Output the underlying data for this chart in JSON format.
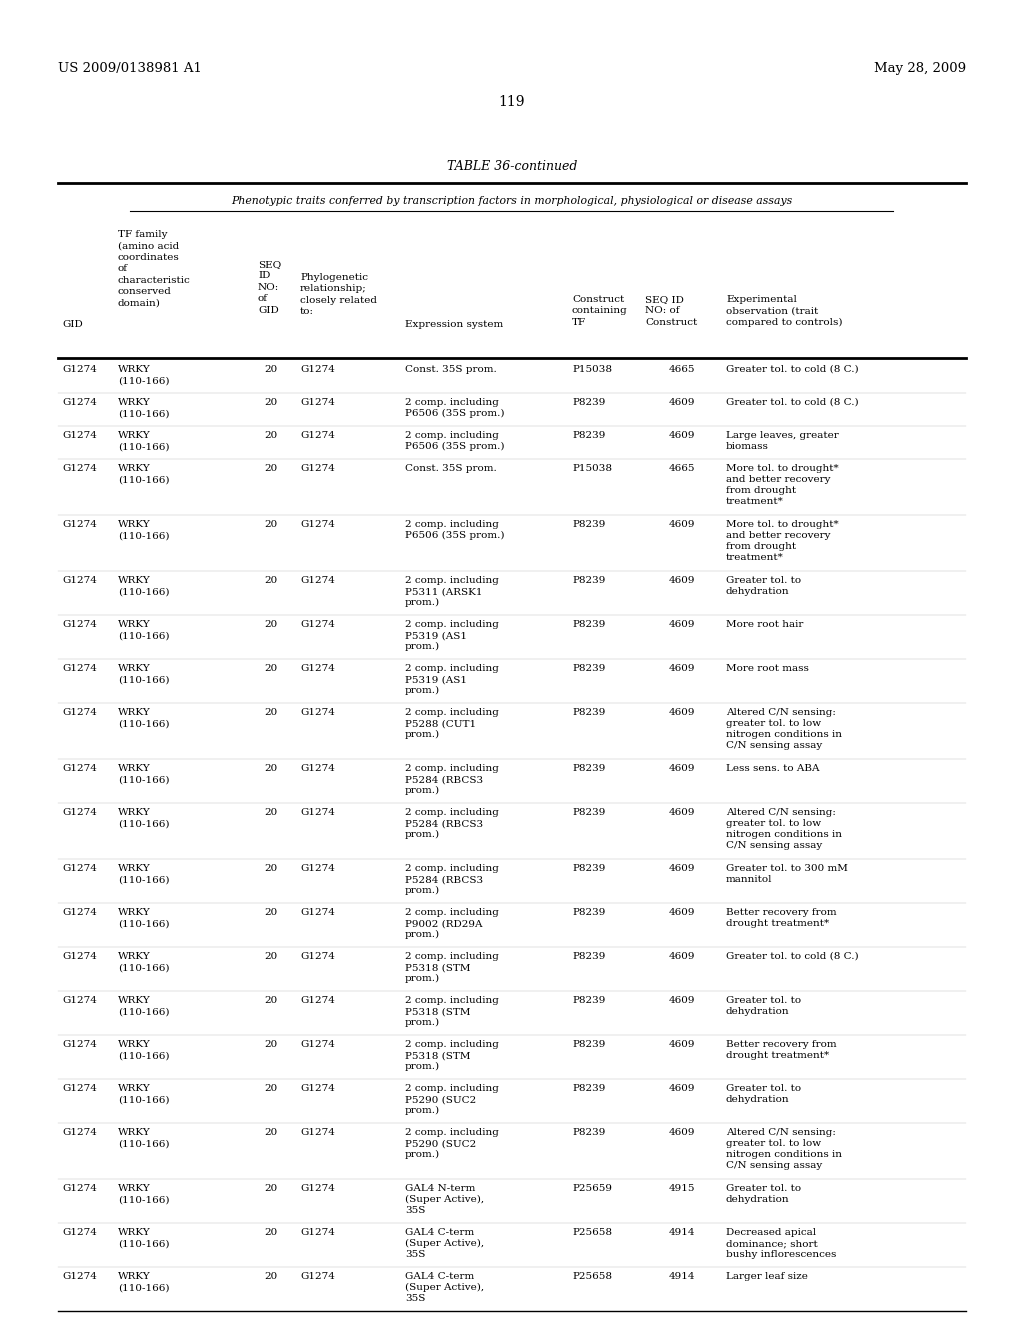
{
  "header_left": "US 2009/0138981 A1",
  "header_right": "May 28, 2009",
  "page_number": "119",
  "table_title": "TABLE 36-continued",
  "subtitle": "Phenotypic traits conferred by transcription factors in morphological, physiological or disease assays",
  "rows": [
    {
      "gid": "G1274",
      "tf": "WRKY\n(110-166)",
      "seq": "20",
      "phylo": "G1274",
      "expr": "Const. 35S prom.",
      "construct": "P15038",
      "seq_c": "4665",
      "obs": "Greater tol. to cold (8 C.)"
    },
    {
      "gid": "G1274",
      "tf": "WRKY\n(110-166)",
      "seq": "20",
      "phylo": "G1274",
      "expr": "2 comp. including\nP6506 (35S prom.)",
      "construct": "P8239",
      "seq_c": "4609",
      "obs": "Greater tol. to cold (8 C.)"
    },
    {
      "gid": "G1274",
      "tf": "WRKY\n(110-166)",
      "seq": "20",
      "phylo": "G1274",
      "expr": "2 comp. including\nP6506 (35S prom.)",
      "construct": "P8239",
      "seq_c": "4609",
      "obs": "Large leaves, greater\nbiomass"
    },
    {
      "gid": "G1274",
      "tf": "WRKY\n(110-166)",
      "seq": "20",
      "phylo": "G1274",
      "expr": "Const. 35S prom.",
      "construct": "P15038",
      "seq_c": "4665",
      "obs": "More tol. to drought*\nand better recovery\nfrom drought\ntreatment*"
    },
    {
      "gid": "G1274",
      "tf": "WRKY\n(110-166)",
      "seq": "20",
      "phylo": "G1274",
      "expr": "2 comp. including\nP6506 (35S prom.)",
      "construct": "P8239",
      "seq_c": "4609",
      "obs": "More tol. to drought*\nand better recovery\nfrom drought\ntreatment*"
    },
    {
      "gid": "G1274",
      "tf": "WRKY\n(110-166)",
      "seq": "20",
      "phylo": "G1274",
      "expr": "2 comp. including\nP5311 (ARSK1\nprom.)",
      "construct": "P8239",
      "seq_c": "4609",
      "obs": "Greater tol. to\ndehydration"
    },
    {
      "gid": "G1274",
      "tf": "WRKY\n(110-166)",
      "seq": "20",
      "phylo": "G1274",
      "expr": "2 comp. including\nP5319 (AS1\nprom.)",
      "construct": "P8239",
      "seq_c": "4609",
      "obs": "More root hair"
    },
    {
      "gid": "G1274",
      "tf": "WRKY\n(110-166)",
      "seq": "20",
      "phylo": "G1274",
      "expr": "2 comp. including\nP5319 (AS1\nprom.)",
      "construct": "P8239",
      "seq_c": "4609",
      "obs": "More root mass"
    },
    {
      "gid": "G1274",
      "tf": "WRKY\n(110-166)",
      "seq": "20",
      "phylo": "G1274",
      "expr": "2 comp. including\nP5288 (CUT1\nprom.)",
      "construct": "P8239",
      "seq_c": "4609",
      "obs": "Altered C/N sensing:\ngreater tol. to low\nnitrogen conditions in\nC/N sensing assay"
    },
    {
      "gid": "G1274",
      "tf": "WRKY\n(110-166)",
      "seq": "20",
      "phylo": "G1274",
      "expr": "2 comp. including\nP5284 (RBCS3\nprom.)",
      "construct": "P8239",
      "seq_c": "4609",
      "obs": "Less sens. to ABA"
    },
    {
      "gid": "G1274",
      "tf": "WRKY\n(110-166)",
      "seq": "20",
      "phylo": "G1274",
      "expr": "2 comp. including\nP5284 (RBCS3\nprom.)",
      "construct": "P8239",
      "seq_c": "4609",
      "obs": "Altered C/N sensing:\ngreater tol. to low\nnitrogen conditions in\nC/N sensing assay"
    },
    {
      "gid": "G1274",
      "tf": "WRKY\n(110-166)",
      "seq": "20",
      "phylo": "G1274",
      "expr": "2 comp. including\nP5284 (RBCS3\nprom.)",
      "construct": "P8239",
      "seq_c": "4609",
      "obs": "Greater tol. to 300 mM\nmannitol"
    },
    {
      "gid": "G1274",
      "tf": "WRKY\n(110-166)",
      "seq": "20",
      "phylo": "G1274",
      "expr": "2 comp. including\nP9002 (RD29A\nprom.)",
      "construct": "P8239",
      "seq_c": "4609",
      "obs": "Better recovery from\ndrought treatment*"
    },
    {
      "gid": "G1274",
      "tf": "WRKY\n(110-166)",
      "seq": "20",
      "phylo": "G1274",
      "expr": "2 comp. including\nP5318 (STM\nprom.)",
      "construct": "P8239",
      "seq_c": "4609",
      "obs": "Greater tol. to cold (8 C.)"
    },
    {
      "gid": "G1274",
      "tf": "WRKY\n(110-166)",
      "seq": "20",
      "phylo": "G1274",
      "expr": "2 comp. including\nP5318 (STM\nprom.)",
      "construct": "P8239",
      "seq_c": "4609",
      "obs": "Greater tol. to\ndehydration"
    },
    {
      "gid": "G1274",
      "tf": "WRKY\n(110-166)",
      "seq": "20",
      "phylo": "G1274",
      "expr": "2 comp. including\nP5318 (STM\nprom.)",
      "construct": "P8239",
      "seq_c": "4609",
      "obs": "Better recovery from\ndrought treatment*"
    },
    {
      "gid": "G1274",
      "tf": "WRKY\n(110-166)",
      "seq": "20",
      "phylo": "G1274",
      "expr": "2 comp. including\nP5290 (SUC2\nprom.)",
      "construct": "P8239",
      "seq_c": "4609",
      "obs": "Greater tol. to\ndehydration"
    },
    {
      "gid": "G1274",
      "tf": "WRKY\n(110-166)",
      "seq": "20",
      "phylo": "G1274",
      "expr": "2 comp. including\nP5290 (SUC2\nprom.)",
      "construct": "P8239",
      "seq_c": "4609",
      "obs": "Altered C/N sensing:\ngreater tol. to low\nnitrogen conditions in\nC/N sensing assay"
    },
    {
      "gid": "G1274",
      "tf": "WRKY\n(110-166)",
      "seq": "20",
      "phylo": "G1274",
      "expr": "GAL4 N-term\n(Super Active),\n35S",
      "construct": "P25659",
      "seq_c": "4915",
      "obs": "Greater tol. to\ndehydration"
    },
    {
      "gid": "G1274",
      "tf": "WRKY\n(110-166)",
      "seq": "20",
      "phylo": "G1274",
      "expr": "GAL4 C-term\n(Super Active),\n35S",
      "construct": "P25658",
      "seq_c": "4914",
      "obs": "Decreased apical\ndominance; short\nbushy inflorescences"
    },
    {
      "gid": "G1274",
      "tf": "WRKY\n(110-166)",
      "seq": "20",
      "phylo": "G1274",
      "expr": "GAL4 C-term\n(Super Active),\n35S",
      "construct": "P25658",
      "seq_c": "4914",
      "obs": "Larger leaf size"
    }
  ],
  "bg_color": "#ffffff",
  "text_color": "#000000"
}
